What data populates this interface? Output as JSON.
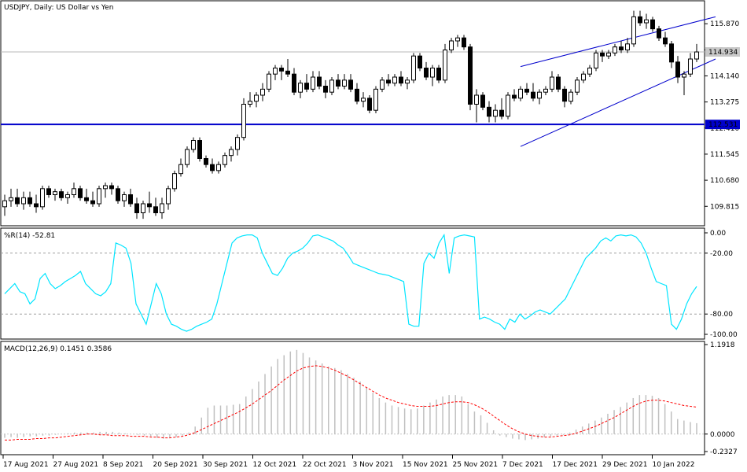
{
  "chart_data": [
    {
      "type": "candlestick",
      "title": "USDJPY, Daily:  US Dollar vs Yen",
      "y_ticks": [
        "115.870",
        "115.005",
        "114.140",
        "113.275",
        "112.410",
        "111.545",
        "110.680",
        "109.815"
      ],
      "ylim": [
        109.3,
        116.5
      ],
      "current_price_label": "114.934",
      "current_price": 114.934,
      "horizontal_line": {
        "label": "112.531",
        "value": 112.531,
        "color": "#0000cc"
      },
      "channel_color": "#0000cc",
      "channel": [
        {
          "x_index": 82,
          "y": 114.45,
          "x2_index": 113,
          "y2": 116.1
        },
        {
          "x_index": 82,
          "y": 111.8,
          "x2_index": 113,
          "y2": 114.7
        }
      ],
      "candles": [
        {
          "o": 109.8,
          "h": 110.2,
          "l": 109.5,
          "c": 110.0
        },
        {
          "o": 110.0,
          "h": 110.4,
          "l": 109.8,
          "c": 110.1
        },
        {
          "o": 110.1,
          "h": 110.4,
          "l": 109.8,
          "c": 109.9
        },
        {
          "o": 109.9,
          "h": 110.3,
          "l": 109.7,
          "c": 110.1
        },
        {
          "o": 110.1,
          "h": 110.3,
          "l": 109.8,
          "c": 109.9
        },
        {
          "o": 109.9,
          "h": 110.2,
          "l": 109.6,
          "c": 109.8
        },
        {
          "o": 109.8,
          "h": 110.5,
          "l": 109.7,
          "c": 110.4
        },
        {
          "o": 110.4,
          "h": 110.5,
          "l": 110.1,
          "c": 110.2
        },
        {
          "o": 110.2,
          "h": 110.4,
          "l": 110.0,
          "c": 110.3
        },
        {
          "o": 110.3,
          "h": 110.4,
          "l": 110.0,
          "c": 110.1
        },
        {
          "o": 110.1,
          "h": 110.3,
          "l": 109.9,
          "c": 110.2
        },
        {
          "o": 110.2,
          "h": 110.6,
          "l": 110.1,
          "c": 110.4
        },
        {
          "o": 110.4,
          "h": 110.5,
          "l": 110.0,
          "c": 110.1
        },
        {
          "o": 110.1,
          "h": 110.4,
          "l": 109.9,
          "c": 110.0
        },
        {
          "o": 110.0,
          "h": 110.3,
          "l": 109.8,
          "c": 109.9
        },
        {
          "o": 109.9,
          "h": 110.5,
          "l": 109.8,
          "c": 110.4
        },
        {
          "o": 110.4,
          "h": 110.6,
          "l": 110.1,
          "c": 110.5
        },
        {
          "o": 110.5,
          "h": 110.6,
          "l": 110.2,
          "c": 110.4
        },
        {
          "o": 110.4,
          "h": 110.5,
          "l": 109.9,
          "c": 110.0
        },
        {
          "o": 110.0,
          "h": 110.3,
          "l": 109.8,
          "c": 110.2
        },
        {
          "o": 110.2,
          "h": 110.4,
          "l": 109.8,
          "c": 109.9
        },
        {
          "o": 109.9,
          "h": 110.1,
          "l": 109.4,
          "c": 109.6
        },
        {
          "o": 109.6,
          "h": 110.0,
          "l": 109.4,
          "c": 109.9
        },
        {
          "o": 109.9,
          "h": 110.3,
          "l": 109.6,
          "c": 109.8
        },
        {
          "o": 109.8,
          "h": 110.1,
          "l": 109.5,
          "c": 109.6
        },
        {
          "o": 109.6,
          "h": 110.1,
          "l": 109.4,
          "c": 109.9
        },
        {
          "o": 109.9,
          "h": 110.5,
          "l": 109.7,
          "c": 110.4
        },
        {
          "o": 110.4,
          "h": 111.0,
          "l": 110.3,
          "c": 110.9
        },
        {
          "o": 110.9,
          "h": 111.4,
          "l": 110.8,
          "c": 111.2
        },
        {
          "o": 111.2,
          "h": 111.8,
          "l": 111.1,
          "c": 111.7
        },
        {
          "o": 111.7,
          "h": 112.1,
          "l": 111.6,
          "c": 112.0
        },
        {
          "o": 112.0,
          "h": 112.1,
          "l": 111.3,
          "c": 111.4
        },
        {
          "o": 111.4,
          "h": 111.5,
          "l": 111.1,
          "c": 111.2
        },
        {
          "o": 111.2,
          "h": 111.4,
          "l": 110.9,
          "c": 111.0
        },
        {
          "o": 111.0,
          "h": 111.3,
          "l": 110.9,
          "c": 111.2
        },
        {
          "o": 111.2,
          "h": 111.6,
          "l": 111.1,
          "c": 111.5
        },
        {
          "o": 111.5,
          "h": 111.8,
          "l": 111.3,
          "c": 111.7
        },
        {
          "o": 111.7,
          "h": 112.2,
          "l": 111.5,
          "c": 112.1
        },
        {
          "o": 112.1,
          "h": 113.4,
          "l": 112.0,
          "c": 113.2
        },
        {
          "o": 113.2,
          "h": 113.6,
          "l": 113.1,
          "c": 113.3
        },
        {
          "o": 113.3,
          "h": 113.6,
          "l": 113.1,
          "c": 113.5
        },
        {
          "o": 113.5,
          "h": 113.9,
          "l": 113.3,
          "c": 113.7
        },
        {
          "o": 113.7,
          "h": 114.3,
          "l": 113.6,
          "c": 114.2
        },
        {
          "o": 114.2,
          "h": 114.5,
          "l": 114.0,
          "c": 114.4
        },
        {
          "o": 114.4,
          "h": 114.5,
          "l": 114.0,
          "c": 114.3
        },
        {
          "o": 114.3,
          "h": 114.7,
          "l": 114.1,
          "c": 114.2
        },
        {
          "o": 114.2,
          "h": 114.4,
          "l": 113.5,
          "c": 113.6
        },
        {
          "o": 113.6,
          "h": 114.0,
          "l": 113.4,
          "c": 113.9
        },
        {
          "o": 113.9,
          "h": 114.2,
          "l": 113.6,
          "c": 113.7
        },
        {
          "o": 113.7,
          "h": 114.3,
          "l": 113.6,
          "c": 114.1
        },
        {
          "o": 114.1,
          "h": 114.3,
          "l": 113.7,
          "c": 113.8
        },
        {
          "o": 113.8,
          "h": 114.0,
          "l": 113.4,
          "c": 113.6
        },
        {
          "o": 113.6,
          "h": 114.1,
          "l": 113.5,
          "c": 114.0
        },
        {
          "o": 114.0,
          "h": 114.2,
          "l": 113.7,
          "c": 113.8
        },
        {
          "o": 113.8,
          "h": 114.2,
          "l": 113.7,
          "c": 114.0
        },
        {
          "o": 114.0,
          "h": 114.2,
          "l": 113.6,
          "c": 113.7
        },
        {
          "o": 113.7,
          "h": 113.9,
          "l": 113.2,
          "c": 113.3
        },
        {
          "o": 113.3,
          "h": 113.6,
          "l": 113.1,
          "c": 113.4
        },
        {
          "o": 113.4,
          "h": 113.5,
          "l": 112.9,
          "c": 113.0
        },
        {
          "o": 113.0,
          "h": 113.8,
          "l": 112.9,
          "c": 113.7
        },
        {
          "o": 113.7,
          "h": 114.1,
          "l": 113.6,
          "c": 114.0
        },
        {
          "o": 114.0,
          "h": 114.2,
          "l": 113.8,
          "c": 113.9
        },
        {
          "o": 113.9,
          "h": 114.2,
          "l": 113.8,
          "c": 114.1
        },
        {
          "o": 114.1,
          "h": 114.3,
          "l": 113.8,
          "c": 113.9
        },
        {
          "o": 113.9,
          "h": 114.1,
          "l": 113.7,
          "c": 114.0
        },
        {
          "o": 114.0,
          "h": 114.9,
          "l": 113.9,
          "c": 114.8
        },
        {
          "o": 114.8,
          "h": 114.9,
          "l": 114.3,
          "c": 114.4
        },
        {
          "o": 114.4,
          "h": 114.6,
          "l": 114.0,
          "c": 114.1
        },
        {
          "o": 114.1,
          "h": 114.5,
          "l": 113.8,
          "c": 114.4
        },
        {
          "o": 114.4,
          "h": 114.5,
          "l": 113.9,
          "c": 114.0
        },
        {
          "o": 114.0,
          "h": 115.2,
          "l": 113.9,
          "c": 115.0
        },
        {
          "o": 115.0,
          "h": 115.4,
          "l": 114.9,
          "c": 115.3
        },
        {
          "o": 115.3,
          "h": 115.5,
          "l": 115.1,
          "c": 115.4
        },
        {
          "o": 115.4,
          "h": 115.5,
          "l": 115.0,
          "c": 115.1
        },
        {
          "o": 115.1,
          "h": 115.2,
          "l": 113.0,
          "c": 113.2
        },
        {
          "o": 113.2,
          "h": 113.7,
          "l": 112.6,
          "c": 113.5
        },
        {
          "o": 113.5,
          "h": 113.6,
          "l": 113.0,
          "c": 113.1
        },
        {
          "o": 113.1,
          "h": 113.3,
          "l": 112.6,
          "c": 112.8
        },
        {
          "o": 112.8,
          "h": 113.2,
          "l": 112.6,
          "c": 113.0
        },
        {
          "o": 113.0,
          "h": 113.4,
          "l": 112.7,
          "c": 112.8
        },
        {
          "o": 112.8,
          "h": 113.6,
          "l": 112.7,
          "c": 113.5
        },
        {
          "o": 113.5,
          "h": 113.7,
          "l": 113.3,
          "c": 113.4
        },
        {
          "o": 113.4,
          "h": 113.8,
          "l": 113.3,
          "c": 113.7
        },
        {
          "o": 113.7,
          "h": 113.9,
          "l": 113.5,
          "c": 113.6
        },
        {
          "o": 113.6,
          "h": 113.9,
          "l": 113.3,
          "c": 113.4
        },
        {
          "o": 113.4,
          "h": 113.7,
          "l": 113.2,
          "c": 113.6
        },
        {
          "o": 113.6,
          "h": 113.8,
          "l": 113.5,
          "c": 113.7
        },
        {
          "o": 113.7,
          "h": 114.3,
          "l": 113.6,
          "c": 114.1
        },
        {
          "o": 114.1,
          "h": 114.2,
          "l": 113.6,
          "c": 113.7
        },
        {
          "o": 113.7,
          "h": 113.8,
          "l": 113.1,
          "c": 113.3
        },
        {
          "o": 113.3,
          "h": 113.7,
          "l": 113.2,
          "c": 113.6
        },
        {
          "o": 113.6,
          "h": 114.1,
          "l": 113.5,
          "c": 114.0
        },
        {
          "o": 114.0,
          "h": 114.3,
          "l": 113.9,
          "c": 114.2
        },
        {
          "o": 114.2,
          "h": 114.5,
          "l": 114.1,
          "c": 114.4
        },
        {
          "o": 114.4,
          "h": 115.0,
          "l": 114.3,
          "c": 114.9
        },
        {
          "o": 114.9,
          "h": 115.0,
          "l": 114.6,
          "c": 114.8
        },
        {
          "o": 114.8,
          "h": 115.0,
          "l": 114.7,
          "c": 114.9
        },
        {
          "o": 114.9,
          "h": 115.2,
          "l": 114.8,
          "c": 115.1
        },
        {
          "o": 115.1,
          "h": 115.3,
          "l": 114.9,
          "c": 115.0
        },
        {
          "o": 115.0,
          "h": 115.4,
          "l": 114.9,
          "c": 115.2
        },
        {
          "o": 115.2,
          "h": 116.3,
          "l": 115.1,
          "c": 116.1
        },
        {
          "o": 116.1,
          "h": 116.3,
          "l": 115.8,
          "c": 115.9
        },
        {
          "o": 115.9,
          "h": 116.2,
          "l": 115.7,
          "c": 116.0
        },
        {
          "o": 116.0,
          "h": 116.1,
          "l": 115.6,
          "c": 115.7
        },
        {
          "o": 115.7,
          "h": 115.8,
          "l": 115.3,
          "c": 115.4
        },
        {
          "o": 115.4,
          "h": 115.6,
          "l": 115.1,
          "c": 115.2
        },
        {
          "o": 115.2,
          "h": 115.3,
          "l": 114.4,
          "c": 114.6
        },
        {
          "o": 114.6,
          "h": 114.8,
          "l": 113.9,
          "c": 114.1
        },
        {
          "o": 114.1,
          "h": 114.3,
          "l": 113.5,
          "c": 114.2
        },
        {
          "o": 114.2,
          "h": 114.9,
          "l": 114.1,
          "c": 114.7
        },
        {
          "o": 114.7,
          "h": 115.2,
          "l": 114.6,
          "c": 114.934
        }
      ]
    },
    {
      "type": "line",
      "title": "%R(14) -52.81",
      "y_ticks": [
        "0.00",
        "-20.00",
        "-80.00",
        "-100.00"
      ],
      "ylim": [
        -100,
        0
      ],
      "levels": [
        -20,
        -80
      ],
      "line_color": "#00e5ff",
      "values": [
        -60,
        -55,
        -50,
        -58,
        -60,
        -70,
        -65,
        -45,
        -40,
        -50,
        -55,
        -52,
        -48,
        -45,
        -42,
        -38,
        -50,
        -55,
        -60,
        -62,
        -58,
        -50,
        -10,
        -12,
        -15,
        -30,
        -70,
        -80,
        -90,
        -70,
        -50,
        -60,
        -80,
        -90,
        -92,
        -95,
        -97,
        -95,
        -92,
        -90,
        -88,
        -85,
        -70,
        -50,
        -30,
        -10,
        -5,
        -3,
        -2,
        -2,
        -5,
        -20,
        -30,
        -40,
        -42,
        -35,
        -25,
        -20,
        -18,
        -15,
        -10,
        -3,
        -2,
        -4,
        -6,
        -8,
        -12,
        -15,
        -22,
        -30,
        -32,
        -34,
        -36,
        -38,
        -40,
        -41,
        -42,
        -44,
        -46,
        -48,
        -90,
        -92,
        -92,
        -30,
        -20,
        -25,
        -10,
        -2,
        -40,
        -5,
        -3,
        -2,
        -3,
        -4,
        -85,
        -83,
        -85,
        -88,
        -90,
        -95,
        -85,
        -88,
        -80,
        -85,
        -82,
        -78,
        -76,
        -78,
        -80,
        -75,
        -70,
        -65,
        -55,
        -45,
        -35,
        -25,
        -20,
        -15,
        -8,
        -5,
        -8,
        -3,
        -2,
        -3,
        -2,
        -4,
        -10,
        -20,
        -35,
        -48,
        -50,
        -52,
        -90,
        -95,
        -85,
        -70,
        -60,
        -52.81
      ]
    },
    {
      "type": "bar",
      "title": "MACD(12,26,9) 0.1451 0.3586",
      "y_ticks": [
        "1.1918",
        "0.0000",
        "-0.2327"
      ],
      "ylim": [
        -0.2327,
        1.1918
      ],
      "histogram_color": "#c0c0c0",
      "signal_color": "#ff0000",
      "histogram": [
        -0.05,
        -0.04,
        -0.05,
        -0.04,
        -0.03,
        -0.03,
        -0.02,
        -0.02,
        -0.01,
        0.0,
        0.01,
        0.02,
        0.02,
        0.02,
        0.02,
        0.03,
        0.03,
        0.03,
        0.02,
        0.01,
        0.0,
        -0.01,
        -0.02,
        -0.03,
        -0.05,
        -0.06,
        -0.05,
        -0.04,
        -0.02,
        0.02,
        0.1,
        0.22,
        0.35,
        0.38,
        0.38,
        0.38,
        0.39,
        0.4,
        0.5,
        0.6,
        0.7,
        0.8,
        0.9,
        1.0,
        1.05,
        1.1,
        1.12,
        1.08,
        1.02,
        0.98,
        0.94,
        0.9,
        0.88,
        0.85,
        0.8,
        0.75,
        0.7,
        0.62,
        0.55,
        0.48,
        0.42,
        0.38,
        0.36,
        0.34,
        0.33,
        0.34,
        0.38,
        0.42,
        0.46,
        0.5,
        0.52,
        0.52,
        0.5,
        0.4,
        0.3,
        0.25,
        0.15,
        0.05,
        -0.02,
        -0.04,
        -0.06,
        -0.07,
        -0.08,
        -0.07,
        -0.06,
        -0.04,
        -0.03,
        -0.02,
        -0.01,
        0.02,
        0.06,
        0.1,
        0.14,
        0.18,
        0.22,
        0.27,
        0.32,
        0.36,
        0.42,
        0.48,
        0.52,
        0.52,
        0.51,
        0.48,
        0.4,
        0.3,
        0.2,
        0.18,
        0.16,
        0.1451
      ],
      "signal": [
        -0.08,
        -0.08,
        -0.07,
        -0.07,
        -0.07,
        -0.06,
        -0.06,
        -0.05,
        -0.05,
        -0.04,
        -0.03,
        -0.02,
        -0.01,
        0.0,
        0.0,
        -0.01,
        -0.01,
        -0.02,
        -0.02,
        -0.02,
        -0.03,
        -0.03,
        -0.03,
        -0.04,
        -0.04,
        -0.05,
        -0.05,
        -0.04,
        -0.03,
        -0.01,
        0.02,
        0.06,
        0.1,
        0.14,
        0.18,
        0.22,
        0.26,
        0.3,
        0.35,
        0.4,
        0.46,
        0.52,
        0.58,
        0.65,
        0.72,
        0.78,
        0.84,
        0.88,
        0.9,
        0.91,
        0.9,
        0.88,
        0.85,
        0.81,
        0.77,
        0.72,
        0.67,
        0.62,
        0.57,
        0.52,
        0.48,
        0.45,
        0.42,
        0.4,
        0.38,
        0.37,
        0.37,
        0.37,
        0.38,
        0.4,
        0.42,
        0.43,
        0.43,
        0.42,
        0.39,
        0.35,
        0.3,
        0.24,
        0.18,
        0.12,
        0.07,
        0.03,
        0.0,
        -0.02,
        -0.03,
        -0.04,
        -0.04,
        -0.03,
        -0.02,
        -0.01,
        0.01,
        0.04,
        0.07,
        0.1,
        0.14,
        0.18,
        0.22,
        0.27,
        0.32,
        0.37,
        0.41,
        0.44,
        0.45,
        0.45,
        0.44,
        0.42,
        0.4,
        0.38,
        0.37,
        0.3586
      ]
    }
  ],
  "x_axis_labels": [
    "17 Aug 2021",
    "27 Aug 2021",
    "8 Sep 2021",
    "20 Sep 2021",
    "30 Sep 2021",
    "12 Oct 2021",
    "22 Oct 2021",
    "3 Nov 2021",
    "15 Nov 2021",
    "25 Nov 2021",
    "7 Dec 2021",
    "17 Dec 2021",
    "29 Dec 2021",
    "10 Jan 2022"
  ]
}
